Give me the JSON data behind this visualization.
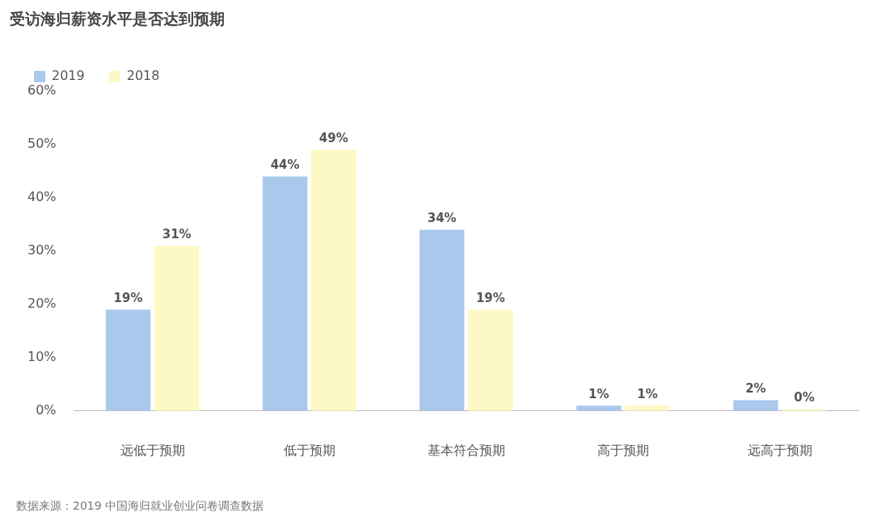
{
  "chart_data": {
    "type": "bar",
    "title": "受访海归薪资水平是否达到预期",
    "categories": [
      "远低于预期",
      "低于预期",
      "基本符合预期",
      "高于预期",
      "远高于预期"
    ],
    "series": [
      {
        "name": "2019",
        "color": "#a9c8ec",
        "values": [
          19,
          44,
          34,
          1,
          2
        ],
        "value_labels": [
          "19%",
          "44%",
          "34%",
          "1%",
          "2%"
        ]
      },
      {
        "name": "2018",
        "color": "#fdf9c4",
        "values": [
          31,
          49,
          19,
          1,
          0
        ],
        "value_labels": [
          "31%",
          "49%",
          "19%",
          "1%",
          "0%"
        ]
      }
    ],
    "ylim": [
      0,
      60
    ],
    "yticks": [
      {
        "value": 0,
        "label": "0%"
      },
      {
        "value": 10,
        "label": "10%"
      },
      {
        "value": 20,
        "label": "20%"
      },
      {
        "value": 30,
        "label": "30%"
      },
      {
        "value": 40,
        "label": "40%"
      },
      {
        "value": 50,
        "label": "50%"
      },
      {
        "value": 60,
        "label": "60%"
      }
    ],
    "grid": false,
    "legend": "top left",
    "annotations": [
      "数据来源：2019 中国海归就业创业问卷调查数据"
    ]
  }
}
